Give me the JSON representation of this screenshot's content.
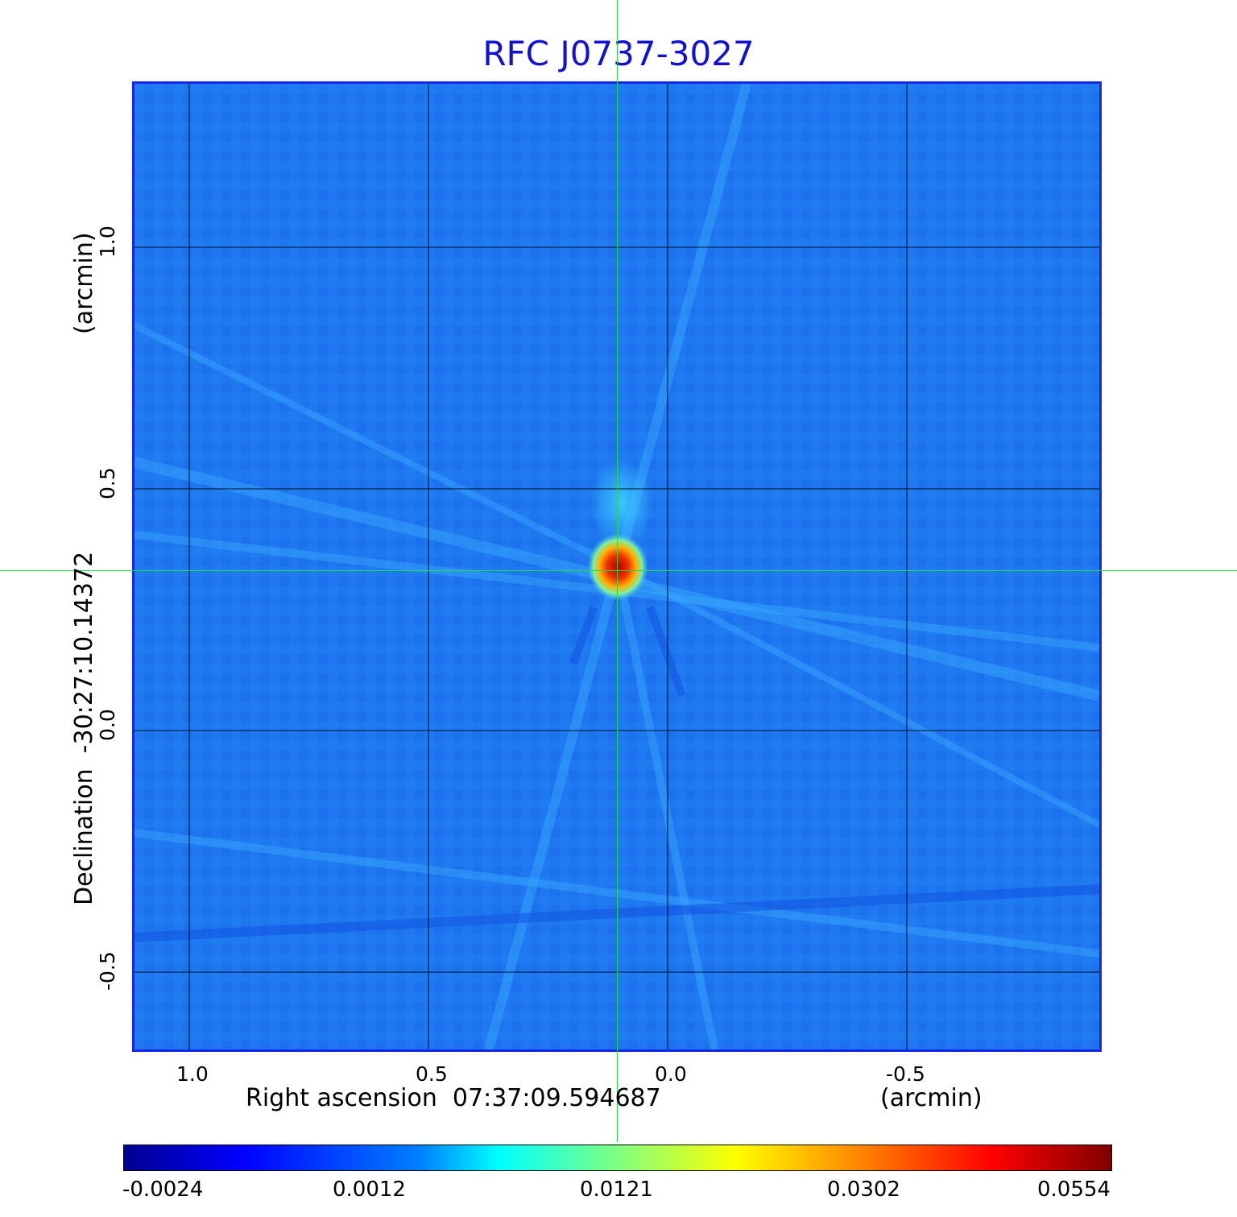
{
  "title": "RFC J0737-3027",
  "x_axis": {
    "label": "Right ascension  07:37:09.594687",
    "unit": "(arcmin)",
    "ticks": [
      "1.0",
      "0.5",
      "0.0",
      "-0.5"
    ]
  },
  "y_axis": {
    "label": "Declination  -30:27:10.14372",
    "unit": "(arcmin)",
    "ticks": [
      "1.0",
      "0.5",
      "0.0",
      "-0.5"
    ]
  },
  "colorbar": {
    "ticks": [
      "-0.0024",
      "0.0012",
      "0.0121",
      "0.0302",
      "0.0554"
    ],
    "colormap": "jet"
  },
  "colors": {
    "background_map": "#1f78f0",
    "source_peak": "#c81414",
    "crosshair": "#22dd44",
    "frame": "#1428e6",
    "title": "#1010d8"
  }
}
